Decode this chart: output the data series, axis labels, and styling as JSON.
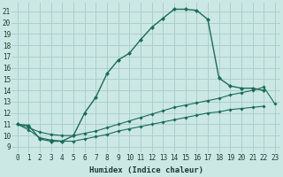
{
  "xlabel": "Humidex (Indice chaleur)",
  "bg_color": "#cce8e4",
  "grid_color": "#aaced0",
  "line_color": "#1a6b5a",
  "xlim": [
    -0.5,
    23.5
  ],
  "ylim": [
    8.5,
    21.8
  ],
  "xticks": [
    0,
    1,
    2,
    3,
    4,
    5,
    6,
    7,
    8,
    9,
    10,
    11,
    12,
    13,
    14,
    15,
    16,
    17,
    18,
    19,
    20,
    21,
    22,
    23
  ],
  "yticks": [
    9,
    10,
    11,
    12,
    13,
    14,
    15,
    16,
    17,
    18,
    19,
    20,
    21
  ],
  "line1_x": [
    0,
    1,
    2,
    3,
    4,
    5,
    6,
    7,
    8,
    9,
    10,
    11,
    12,
    13,
    14,
    15,
    16,
    17,
    18,
    19,
    20,
    21,
    22
  ],
  "line1_y": [
    11.0,
    10.9,
    9.7,
    9.5,
    9.5,
    10.0,
    12.0,
    13.4,
    15.5,
    16.7,
    17.3,
    18.5,
    19.6,
    20.4,
    21.2,
    21.2,
    21.1,
    20.3,
    15.1,
    14.4,
    14.2,
    14.2,
    14.0
  ],
  "line2_x": [
    0,
    1,
    2,
    3,
    4,
    5,
    6,
    7,
    8,
    9,
    10,
    11,
    12,
    13,
    14,
    15,
    16,
    17,
    18,
    19,
    20,
    21,
    22,
    23
  ],
  "line2_y": [
    11.0,
    10.7,
    10.3,
    10.1,
    10.0,
    10.0,
    10.2,
    10.4,
    10.7,
    11.0,
    11.3,
    11.6,
    11.9,
    12.2,
    12.5,
    12.7,
    12.9,
    13.1,
    13.3,
    13.6,
    13.8,
    14.0,
    14.3,
    12.8
  ],
  "line3_x": [
    0,
    1,
    2,
    3,
    4,
    5,
    6,
    7,
    8,
    9,
    10,
    11,
    12,
    13,
    14,
    15,
    16,
    17,
    18,
    19,
    20,
    21,
    22,
    23
  ],
  "line3_y": [
    11.0,
    10.5,
    9.8,
    9.6,
    9.5,
    9.5,
    9.7,
    9.9,
    10.1,
    10.4,
    10.6,
    10.8,
    11.0,
    11.2,
    11.4,
    11.6,
    11.8,
    12.0,
    12.1,
    12.3,
    12.4,
    12.5,
    12.6,
    null
  ]
}
